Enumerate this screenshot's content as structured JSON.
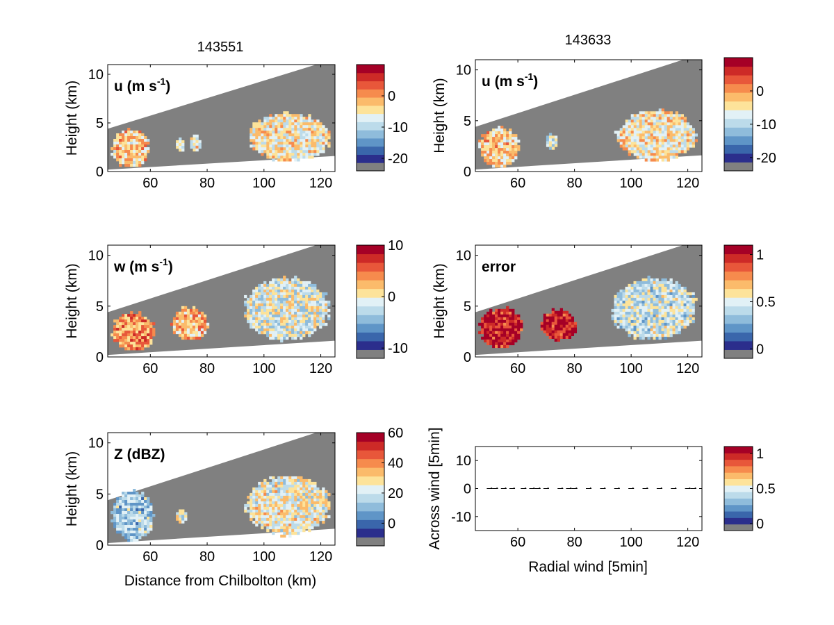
{
  "figure": {
    "column_titles": [
      "143551",
      "143633"
    ],
    "xlabel_left": "Distance from Chilbolton (km)",
    "xlabel_right": "Radial wind [5min]",
    "ylabel": "Height (km)",
    "ylabel_quiver": "Across wind [5min]"
  },
  "colors": {
    "mask": "#808080",
    "axis": "#000000",
    "colormap": [
      "#2b2e8c",
      "#3a66ab",
      "#5f95c7",
      "#8fbcdb",
      "#bcdbea",
      "#e2f1f6",
      "#fde39a",
      "#fbbb6b",
      "#f68b4d",
      "#e8573a",
      "#cd2a27",
      "#a50026"
    ]
  },
  "chart_data": [
    {
      "type": "heatmap",
      "name": "u-143551",
      "panel_label": "u (m s",
      "panel_label_sup": "-1",
      "panel_label_tail": ")",
      "column_title": "143551",
      "xlim": [
        45,
        125
      ],
      "ylim": [
        0,
        11
      ],
      "xticks": [
        60,
        80,
        100,
        120
      ],
      "yticks": [
        0,
        5,
        10
      ],
      "xlabel": "",
      "ylabel": "Height (km)",
      "colorbar": {
        "range": [
          -24,
          10
        ],
        "ticks": [
          0,
          -10,
          -20
        ],
        "bands": 12,
        "masked_band": true
      },
      "echoes": [
        {
          "x": [
            46,
            60
          ],
          "y": [
            0.3,
            4.5
          ],
          "value": -4
        },
        {
          "x": [
            69,
            72
          ],
          "y": [
            2.0,
            3.5
          ],
          "value": -9
        },
        {
          "x": [
            74,
            78
          ],
          "y": [
            2.0,
            3.8
          ],
          "value": -7
        },
        {
          "x": [
            94,
            124
          ],
          "y": [
            0.9,
            6.2
          ],
          "value": -6
        }
      ]
    },
    {
      "type": "heatmap",
      "name": "u-143633",
      "panel_label": "u (m s",
      "panel_label_sup": "-1",
      "panel_label_tail": ")",
      "column_title": "143633",
      "xlim": [
        45,
        125
      ],
      "ylim": [
        0,
        11
      ],
      "xticks": [
        60,
        80,
        100,
        120
      ],
      "yticks": [
        0,
        5,
        10
      ],
      "xlabel": "",
      "ylabel": "Height (km)",
      "colorbar": {
        "range": [
          -24,
          10
        ],
        "ticks": [
          0,
          -10,
          -20
        ],
        "bands": 12,
        "masked_band": true
      },
      "echoes": [
        {
          "x": [
            46,
            61
          ],
          "y": [
            0.3,
            4.5
          ],
          "value": -4
        },
        {
          "x": [
            70,
            74
          ],
          "y": [
            2.0,
            3.8
          ],
          "value": -10
        },
        {
          "x": [
            94,
            124
          ],
          "y": [
            0.9,
            6.2
          ],
          "value": -6
        }
      ]
    },
    {
      "type": "heatmap",
      "name": "w-143551",
      "panel_label": "w (m s",
      "panel_label_sup": "-1",
      "panel_label_tail": ")",
      "xlim": [
        45,
        125
      ],
      "ylim": [
        0,
        11
      ],
      "xticks": [
        60,
        80,
        100,
        120
      ],
      "yticks": [
        0,
        5,
        10
      ],
      "xlabel": "",
      "ylabel": "Height (km)",
      "colorbar": {
        "range": [
          -12,
          10
        ],
        "ticks": [
          10,
          0,
          -10
        ],
        "bands": 12,
        "masked_band": true
      },
      "echoes": [
        {
          "x": [
            46,
            62
          ],
          "y": [
            0.5,
            4.5
          ],
          "value": 3
        },
        {
          "x": [
            67,
            81
          ],
          "y": [
            1.5,
            5.0
          ],
          "value": 2
        },
        {
          "x": [
            92,
            124
          ],
          "y": [
            1.5,
            8.0
          ],
          "value": -2
        }
      ]
    },
    {
      "type": "heatmap",
      "name": "error-143633",
      "panel_label": "error",
      "xlim": [
        45,
        125
      ],
      "ylim": [
        0,
        11
      ],
      "xticks": [
        60,
        80,
        100,
        120
      ],
      "yticks": [
        0,
        5,
        10
      ],
      "xlabel": "",
      "ylabel": "Height (km)",
      "colorbar": {
        "range": [
          -0.1,
          1.1
        ],
        "ticks": [
          1,
          0.5,
          0
        ],
        "bands": 12,
        "masked_band": true
      },
      "echoes": [
        {
          "x": [
            46,
            62
          ],
          "y": [
            0.8,
            5.0
          ],
          "value": 1.0
        },
        {
          "x": [
            68,
            81
          ],
          "y": [
            1.5,
            4.8
          ],
          "value": 1.0
        },
        {
          "x": [
            92,
            124
          ],
          "y": [
            1.5,
            8.0
          ],
          "value": 0.4
        }
      ]
    },
    {
      "type": "heatmap",
      "name": "Z-143551",
      "panel_label": "Z (dBZ)",
      "xlim": [
        45,
        125
      ],
      "ylim": [
        0,
        11
      ],
      "xticks": [
        60,
        80,
        100,
        120
      ],
      "yticks": [
        0,
        5,
        10
      ],
      "xlabel": "Distance from Chilbolton (km)",
      "ylabel": "Height (km)",
      "colorbar": {
        "range": [
          -15,
          60
        ],
        "ticks": [
          60,
          40,
          20,
          0
        ],
        "bands": 12,
        "masked_band": true
      },
      "echoes": [
        {
          "x": [
            46,
            62
          ],
          "y": [
            0.3,
            5.5
          ],
          "value": 10
        },
        {
          "x": [
            69,
            73
          ],
          "y": [
            2.0,
            3.5
          ],
          "value": 18
        },
        {
          "x": [
            93,
            124
          ],
          "y": [
            0.8,
            7.0
          ],
          "value": 22
        }
      ]
    },
    {
      "type": "scatter",
      "name": "quiver",
      "xlim": [
        45,
        125
      ],
      "ylim": [
        -15,
        15
      ],
      "xticks": [
        60,
        80,
        100,
        120
      ],
      "yticks": [
        10,
        0,
        -10
      ],
      "xlabel": "Radial wind [5min]",
      "ylabel": "Across wind [5min]",
      "x": [
        50,
        52,
        55,
        58,
        62,
        65,
        67,
        70,
        75,
        78,
        80,
        85,
        90,
        95,
        100,
        105,
        110,
        115,
        120,
        122
      ],
      "y": [
        0,
        0,
        0,
        0,
        0,
        0,
        0,
        0,
        0,
        0,
        0,
        0,
        0,
        0,
        0,
        0,
        0,
        0,
        0,
        0
      ],
      "colorbar": {
        "range": [
          -0.1,
          1.1
        ],
        "ticks": [
          1,
          0.5,
          0
        ],
        "bands": 12,
        "masked_band": true
      }
    }
  ]
}
